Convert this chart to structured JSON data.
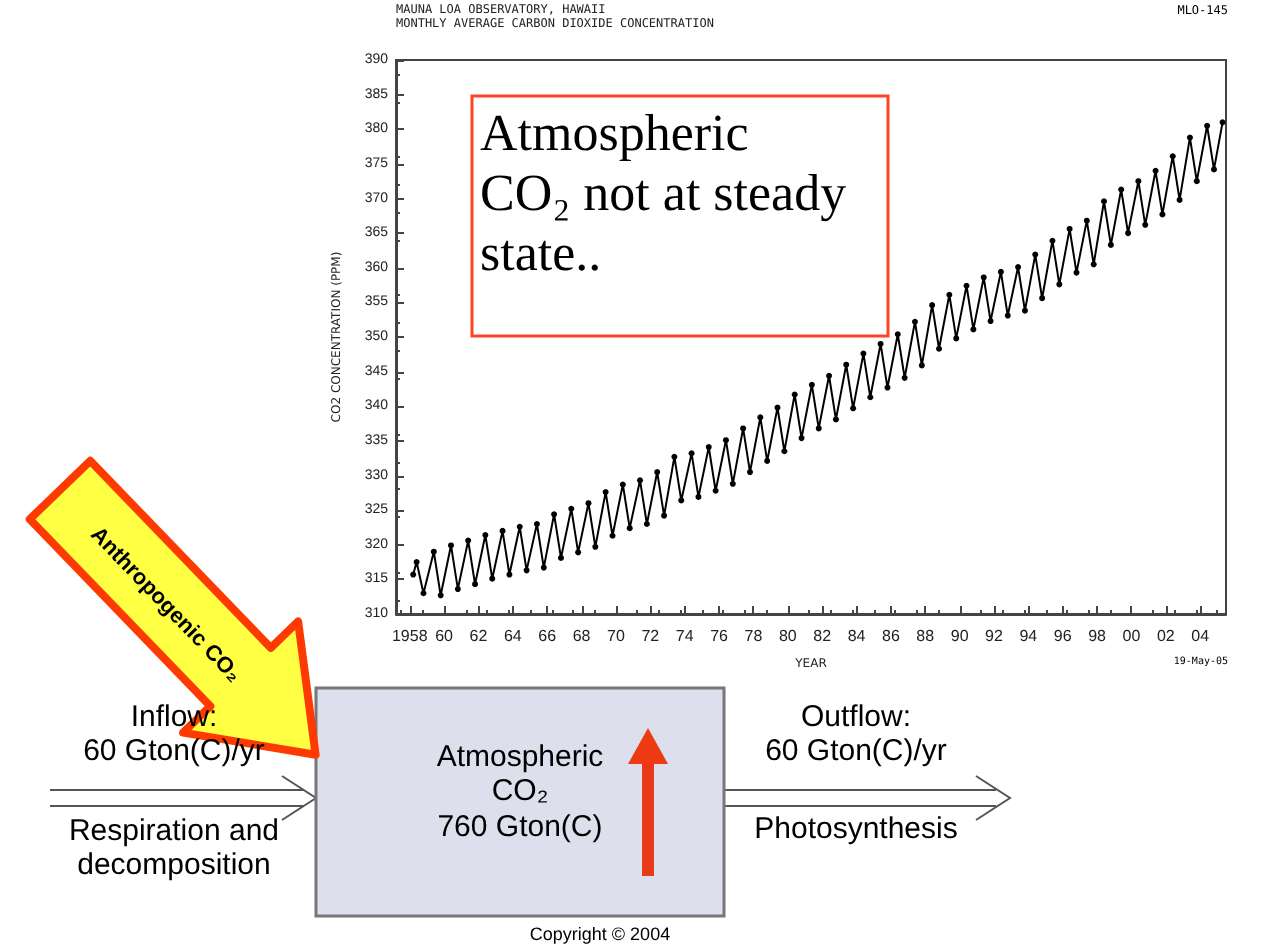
{
  "chart_data": {
    "type": "line",
    "title": "MAUNA LOA OBSERVATORY, HAWAII",
    "subtitle": "MONTHLY AVERAGE CARBON DIOXIDE CONCENTRATION",
    "xlabel": "YEAR",
    "ylabel": "CO2 CONCENTRATION (PPM)",
    "x": [
      1958.2,
      1958.4,
      1958.8,
      1959.4,
      1959.8,
      1960.4,
      1960.8,
      1961.4,
      1961.8,
      1962.4,
      1962.8,
      1963.4,
      1963.8,
      1964.4,
      1964.8,
      1965.4,
      1965.8,
      1966.4,
      1966.8,
      1967.4,
      1967.8,
      1968.4,
      1968.8,
      1969.4,
      1969.8,
      1970.4,
      1970.8,
      1971.4,
      1971.8,
      1972.4,
      1972.8,
      1973.4,
      1973.8,
      1974.4,
      1974.8,
      1975.4,
      1975.8,
      1976.4,
      1976.8,
      1977.4,
      1977.8,
      1978.4,
      1978.8,
      1979.4,
      1979.8,
      1980.4,
      1980.8,
      1981.4,
      1981.8,
      1982.4,
      1982.8,
      1983.4,
      1983.8,
      1984.4,
      1984.8,
      1985.4,
      1985.8,
      1986.4,
      1986.8,
      1987.4,
      1987.8,
      1988.4,
      1988.8,
      1989.4,
      1989.8,
      1990.4,
      1990.8,
      1991.4,
      1991.8,
      1992.4,
      1992.8,
      1993.4,
      1993.8,
      1994.4,
      1994.8,
      1995.4,
      1995.8,
      1996.4,
      1996.8,
      1997.4,
      1997.8,
      1998.4,
      1998.8,
      1999.4,
      1999.8,
      2000.4,
      2000.8,
      2001.4,
      2001.8,
      2002.4,
      2002.8,
      2003.4,
      2003.8,
      2004.4,
      2004.8,
      2005.3
    ],
    "series": [
      {
        "color": "#000000",
        "values": [
          315.7,
          317.5,
          313.0,
          319.0,
          312.7,
          319.9,
          313.6,
          320.6,
          314.3,
          321.4,
          315.1,
          322.0,
          315.7,
          322.6,
          316.3,
          323.0,
          316.7,
          324.4,
          318.1,
          325.2,
          318.9,
          326.0,
          319.7,
          327.6,
          321.3,
          328.7,
          322.4,
          329.3,
          323.0,
          330.5,
          324.2,
          332.7,
          326.4,
          333.2,
          326.9,
          334.1,
          327.8,
          335.1,
          328.8,
          336.8,
          330.5,
          338.4,
          332.1,
          339.8,
          333.5,
          341.7,
          335.4,
          343.1,
          336.8,
          344.4,
          338.1,
          346.0,
          339.7,
          347.6,
          341.3,
          349.0,
          342.7,
          350.4,
          344.1,
          352.2,
          345.9,
          354.6,
          348.3,
          356.1,
          349.8,
          357.4,
          351.1,
          358.6,
          352.3,
          359.4,
          353.1,
          360.1,
          353.8,
          361.9,
          355.6,
          363.9,
          357.6,
          365.6,
          359.3,
          366.8,
          360.5,
          369.6,
          363.3,
          371.3,
          365.0,
          372.5,
          366.2,
          374.0,
          367.7,
          376.1,
          369.8,
          378.8,
          372.5,
          380.5,
          374.2,
          381.0
        ]
      }
    ],
    "xlim": [
      1957.2,
      2005.5
    ],
    "ylim": [
      310,
      390
    ],
    "xticks": [
      1958,
      {
        "value": 1960,
        "label": "60"
      },
      {
        "value": 1962,
        "label": "62"
      },
      {
        "value": 1964,
        "label": "64"
      },
      {
        "value": 1966,
        "label": "66"
      },
      {
        "value": 1968,
        "label": "68"
      },
      {
        "value": 1970,
        "label": "70"
      },
      {
        "value": 1972,
        "label": "72"
      },
      {
        "value": 1974,
        "label": "74"
      },
      {
        "value": 1976,
        "label": "76"
      },
      {
        "value": 1978,
        "label": "78"
      },
      {
        "value": 1980,
        "label": "80"
      },
      {
        "value": 1982,
        "label": "82"
      },
      {
        "value": 1984,
        "label": "84"
      },
      {
        "value": 1986,
        "label": "86"
      },
      {
        "value": 1988,
        "label": "88"
      },
      {
        "value": 1990,
        "label": "90"
      },
      {
        "value": 1992,
        "label": "92"
      },
      {
        "value": 1994,
        "label": "94"
      },
      {
        "value": 1996,
        "label": "96"
      },
      {
        "value": 1998,
        "label": "98"
      },
      {
        "value": 2000,
        "label": "00"
      },
      {
        "value": 2002,
        "label": "02"
      },
      {
        "value": 2004,
        "label": "04"
      }
    ],
    "yticks": [
      310,
      315,
      320,
      325,
      330,
      335,
      340,
      345,
      350,
      355,
      360,
      365,
      370,
      375,
      380,
      385,
      390
    ],
    "grid": false,
    "marker": "circle",
    "line_style": "solid",
    "annotations": [
      "Atmospheric CO₂ not at steady state..",
      "Inflow:\n60 Gton(C)/yr",
      "Respiration and\ndecomposition",
      "Atmospheric\nCO₂\n760 Gton(C)",
      "Outflow:\n60 Gton(C)/yr",
      "Photosynthesis",
      "Anthropogenic CO₂",
      "Copyright © 2004",
      "MLO-145",
      "19-May-05"
    ]
  }
}
